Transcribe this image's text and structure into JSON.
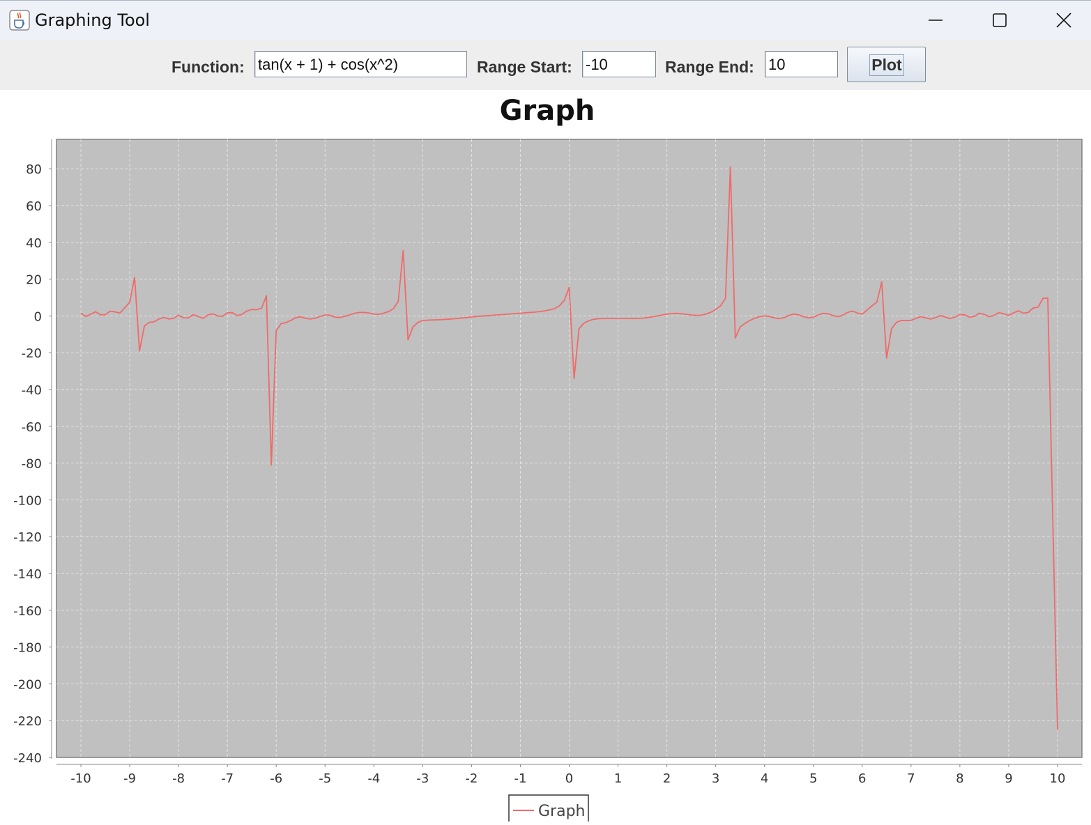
{
  "window": {
    "title": "Graphing Tool",
    "icon": "java-cup-icon",
    "controls": [
      "minimize-icon",
      "maximize-icon",
      "close-icon"
    ]
  },
  "toolbar": {
    "function_label": "Function:",
    "function_value": "tan(x + 1) + cos(x^2)",
    "range_start_label": "Range Start:",
    "range_start_value": "-10",
    "range_end_label": "Range End:",
    "range_end_value": "10",
    "plot_label": "Plot"
  },
  "colors": {
    "plot_background": "#c0c0c0",
    "series": "#f06a6a",
    "gridline": "#ececec"
  },
  "chart_data": {
    "type": "line",
    "title": "Graph",
    "xlabel": "",
    "ylabel": "",
    "xlim": [
      -10.5,
      10.5
    ],
    "ylim": [
      -240,
      96
    ],
    "x_ticks": [
      -10,
      -9,
      -8,
      -7,
      -6,
      -5,
      -4,
      -3,
      -2,
      -1,
      0,
      1,
      2,
      3,
      4,
      5,
      6,
      7,
      8,
      9,
      10
    ],
    "y_ticks": [
      80,
      60,
      40,
      20,
      0,
      -20,
      -40,
      -60,
      -80,
      -100,
      -120,
      -140,
      -160,
      -180,
      -200,
      -220,
      -240
    ],
    "grid": true,
    "legend": "bottom-center",
    "series": [
      {
        "name": "Graph",
        "points": [
          [
            -10,
            1.5
          ],
          [
            -9.9,
            -0.3
          ],
          [
            -9.8,
            0.9
          ],
          [
            -9.7,
            2.3
          ],
          [
            -9.6,
            0.6
          ],
          [
            -9.5,
            0.7
          ],
          [
            -9.4,
            2.6
          ],
          [
            -9.3,
            2.2
          ],
          [
            -9.2,
            1.6
          ],
          [
            -9.1,
            4.5
          ],
          [
            -9.0,
            7.5
          ],
          [
            -8.9,
            21.0
          ],
          [
            -8.8,
            -19.0
          ],
          [
            -8.7,
            -5.5
          ],
          [
            -8.6,
            -3.5
          ],
          [
            -8.5,
            -3.2
          ],
          [
            -8.4,
            -1.6
          ],
          [
            -8.3,
            -0.8
          ],
          [
            -8.2,
            -1.7
          ],
          [
            -8.1,
            -1.3
          ],
          [
            -8.0,
            0.4
          ],
          [
            -7.9,
            -1.0
          ],
          [
            -7.8,
            -1.1
          ],
          [
            -7.7,
            0.7
          ],
          [
            -7.6,
            -0.2
          ],
          [
            -7.5,
            -1.3
          ],
          [
            -7.4,
            0.5
          ],
          [
            -7.3,
            1.2
          ],
          [
            -7.2,
            0.0
          ],
          [
            -7.1,
            -0.2
          ],
          [
            -7.0,
            1.7
          ],
          [
            -6.9,
            1.8
          ],
          [
            -6.8,
            0.2
          ],
          [
            -6.7,
            0.9
          ],
          [
            -6.6,
            2.7
          ],
          [
            -6.5,
            3.5
          ],
          [
            -6.4,
            3.4
          ],
          [
            -6.3,
            4.2
          ],
          [
            -6.2,
            11.0
          ],
          [
            -6.1,
            -81.0
          ],
          [
            -6.0,
            -8.0
          ],
          [
            -5.9,
            -4.2
          ],
          [
            -5.8,
            -3.6
          ],
          [
            -5.7,
            -2.4
          ],
          [
            -5.6,
            -0.9
          ],
          [
            -5.5,
            -0.5
          ],
          [
            -5.4,
            -1.2
          ],
          [
            -5.3,
            -1.7
          ],
          [
            -5.2,
            -1.2
          ],
          [
            -5.1,
            -0.3
          ],
          [
            -5.0,
            0.5
          ],
          [
            -4.9,
            0.4
          ],
          [
            -4.8,
            -0.6
          ],
          [
            -4.7,
            -0.9
          ],
          [
            -4.6,
            -0.2
          ],
          [
            -4.5,
            0.5
          ],
          [
            -4.4,
            1.4
          ],
          [
            -4.3,
            1.9
          ],
          [
            -4.2,
            1.9
          ],
          [
            -4.1,
            1.6
          ],
          [
            -4.0,
            1.0
          ],
          [
            -3.9,
            0.9
          ],
          [
            -3.8,
            1.5
          ],
          [
            -3.7,
            2.4
          ],
          [
            -3.6,
            3.9
          ],
          [
            -3.5,
            8.0
          ],
          [
            -3.4,
            35.5
          ],
          [
            -3.3,
            -13.0
          ],
          [
            -3.2,
            -6.0
          ],
          [
            -3.1,
            -3.5
          ],
          [
            -3.0,
            -2.5
          ],
          [
            -2.9,
            -2.3
          ],
          [
            -2.8,
            -2.2
          ],
          [
            -2.7,
            -2.1
          ],
          [
            -2.6,
            -2.0
          ],
          [
            -2.5,
            -1.8
          ],
          [
            -2.4,
            -1.6
          ],
          [
            -2.3,
            -1.4
          ],
          [
            -2.2,
            -1.1
          ],
          [
            -2.1,
            -0.9
          ],
          [
            -2.0,
            -0.6
          ],
          [
            -1.9,
            -0.3
          ],
          [
            -1.8,
            -0.1
          ],
          [
            -1.7,
            0.1
          ],
          [
            -1.6,
            0.3
          ],
          [
            -1.5,
            0.5
          ],
          [
            -1.4,
            0.7
          ],
          [
            -1.3,
            0.9
          ],
          [
            -1.2,
            1.1
          ],
          [
            -1.1,
            1.3
          ],
          [
            -1.0,
            1.5
          ],
          [
            -0.9,
            1.7
          ],
          [
            -0.8,
            1.9
          ],
          [
            -0.7,
            2.1
          ],
          [
            -0.6,
            2.4
          ],
          [
            -0.5,
            2.8
          ],
          [
            -0.4,
            3.3
          ],
          [
            -0.3,
            4.0
          ],
          [
            -0.2,
            5.5
          ],
          [
            -0.1,
            8.5
          ],
          [
            0.0,
            15.5
          ],
          [
            0.1,
            -34.0
          ],
          [
            0.2,
            -7.0
          ],
          [
            0.3,
            -4.0
          ],
          [
            0.4,
            -2.6
          ],
          [
            0.5,
            -1.8
          ],
          [
            0.6,
            -1.5
          ],
          [
            0.7,
            -1.4
          ],
          [
            0.8,
            -1.3
          ],
          [
            0.9,
            -1.3
          ],
          [
            1.0,
            -1.3
          ],
          [
            1.1,
            -1.3
          ],
          [
            1.2,
            -1.3
          ],
          [
            1.3,
            -1.4
          ],
          [
            1.4,
            -1.3
          ],
          [
            1.5,
            -1.2
          ],
          [
            1.6,
            -0.9
          ],
          [
            1.7,
            -0.5
          ],
          [
            1.8,
            0.0
          ],
          [
            1.9,
            0.5
          ],
          [
            2.0,
            1.0
          ],
          [
            2.1,
            1.3
          ],
          [
            2.2,
            1.4
          ],
          [
            2.3,
            1.2
          ],
          [
            2.4,
            0.9
          ],
          [
            2.5,
            0.5
          ],
          [
            2.6,
            0.3
          ],
          [
            2.7,
            0.4
          ],
          [
            2.8,
            1.0
          ],
          [
            2.9,
            2.0
          ],
          [
            3.0,
            3.5
          ],
          [
            3.1,
            5.5
          ],
          [
            3.2,
            9.5
          ],
          [
            3.3,
            81.0
          ],
          [
            3.4,
            -12.0
          ],
          [
            3.5,
            -6.0
          ],
          [
            3.6,
            -4.0
          ],
          [
            3.7,
            -2.5
          ],
          [
            3.8,
            -1.2
          ],
          [
            3.9,
            -0.4
          ],
          [
            4.0,
            0.0
          ],
          [
            4.1,
            -0.3
          ],
          [
            4.2,
            -1.0
          ],
          [
            4.3,
            -1.5
          ],
          [
            4.4,
            -0.9
          ],
          [
            4.5,
            0.3
          ],
          [
            4.6,
            1.0
          ],
          [
            4.7,
            0.6
          ],
          [
            4.8,
            -0.4
          ],
          [
            4.9,
            -1.1
          ],
          [
            5.0,
            -0.7
          ],
          [
            5.1,
            0.5
          ],
          [
            5.2,
            1.4
          ],
          [
            5.3,
            1.2
          ],
          [
            5.4,
            0.2
          ],
          [
            5.5,
            -0.4
          ],
          [
            5.6,
            0.4
          ],
          [
            5.7,
            1.9
          ],
          [
            5.8,
            2.7
          ],
          [
            5.9,
            1.6
          ],
          [
            6.0,
            1.0
          ],
          [
            6.1,
            3.2
          ],
          [
            6.2,
            5.5
          ],
          [
            6.3,
            7.5
          ],
          [
            6.4,
            18.5
          ],
          [
            6.5,
            -23.0
          ],
          [
            6.6,
            -7.0
          ],
          [
            6.7,
            -3.5
          ],
          [
            6.8,
            -2.4
          ],
          [
            6.9,
            -2.5
          ],
          [
            7.0,
            -2.4
          ],
          [
            7.1,
            -1.3
          ],
          [
            7.2,
            -0.4
          ],
          [
            7.3,
            -1.0
          ],
          [
            7.4,
            -1.7
          ],
          [
            7.5,
            -0.9
          ],
          [
            7.6,
            0.2
          ],
          [
            7.7,
            -0.6
          ],
          [
            7.8,
            -1.4
          ],
          [
            7.9,
            -0.6
          ],
          [
            8.0,
            0.7
          ],
          [
            8.1,
            0.6
          ],
          [
            8.2,
            -0.7
          ],
          [
            8.3,
            -0.2
          ],
          [
            8.4,
            1.5
          ],
          [
            8.5,
            0.8
          ],
          [
            8.6,
            -0.4
          ],
          [
            8.7,
            0.3
          ],
          [
            8.8,
            1.8
          ],
          [
            8.9,
            1.2
          ],
          [
            9.0,
            0.3
          ],
          [
            9.1,
            1.7
          ],
          [
            9.2,
            2.8
          ],
          [
            9.3,
            1.5
          ],
          [
            9.4,
            1.9
          ],
          [
            9.5,
            4.3
          ],
          [
            9.6,
            4.8
          ],
          [
            9.7,
            9.5
          ],
          [
            9.8,
            9.8
          ],
          [
            10.0,
            -225.0
          ]
        ]
      }
    ]
  }
}
